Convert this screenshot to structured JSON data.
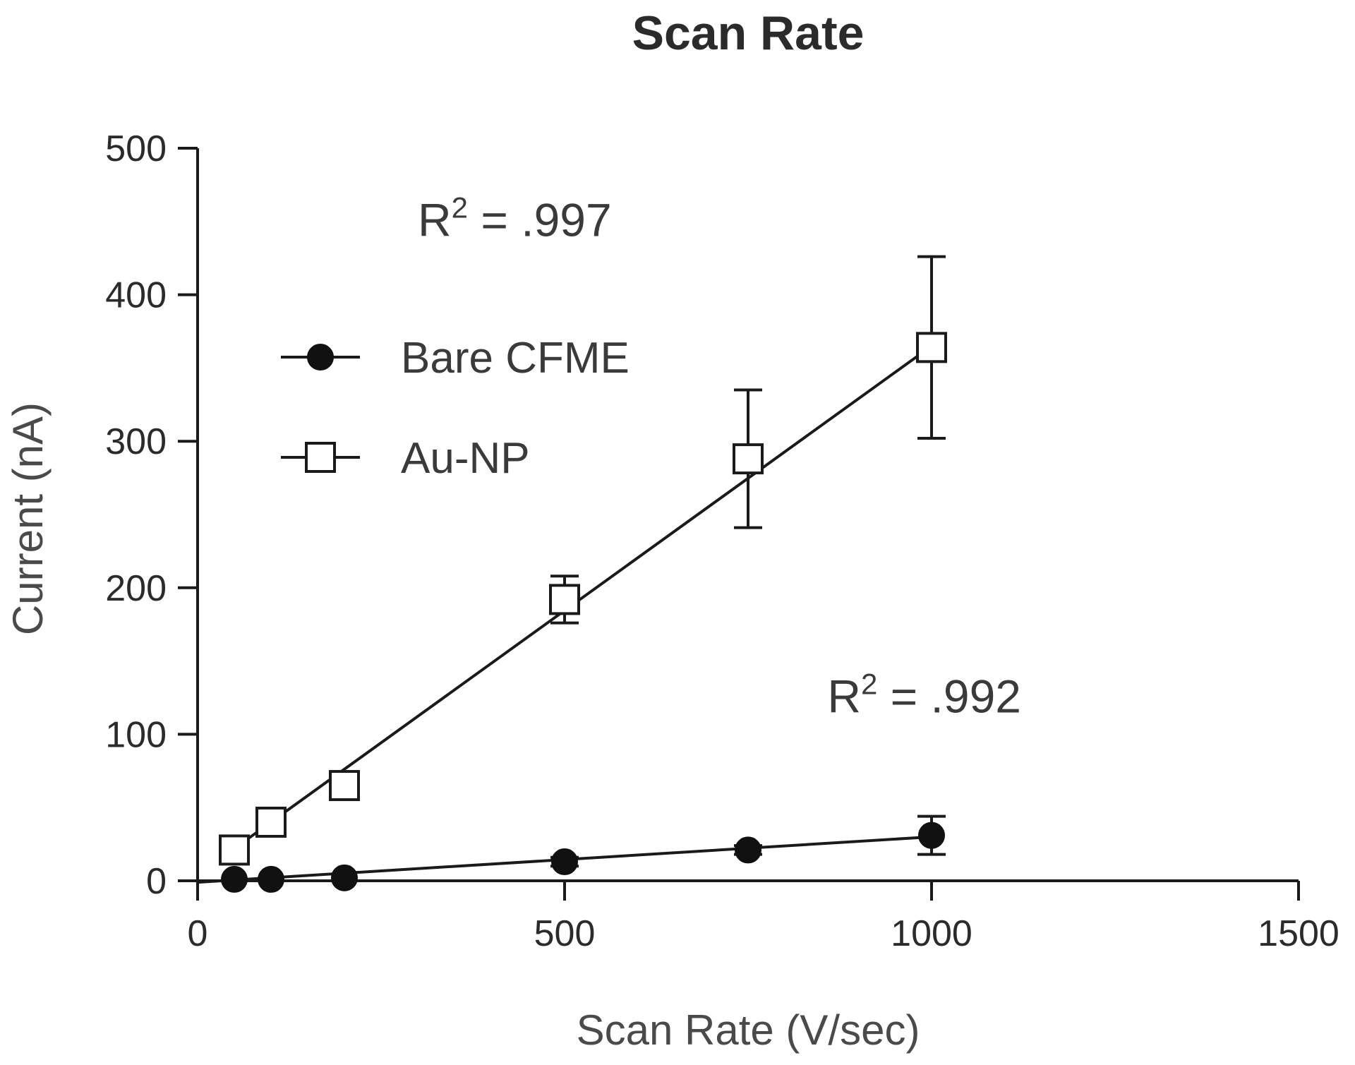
{
  "chart_data": {
    "type": "scatter",
    "title": "Scan Rate",
    "xlabel": "Scan Rate (V/sec)",
    "ylabel": "Current (nA)",
    "xlim": [
      0,
      1500
    ],
    "ylim": [
      0,
      500
    ],
    "xticks": [
      0,
      500,
      1000,
      1500
    ],
    "yticks": [
      0,
      100,
      200,
      300,
      400,
      500
    ],
    "grid": false,
    "legend_position": "upper-left",
    "series": [
      {
        "name": "Bare CFME",
        "marker": "filled-circle",
        "x": [
          50,
          100,
          200,
          500,
          750,
          1000
        ],
        "y": [
          1,
          1,
          2,
          13,
          21,
          31
        ],
        "error": [
          0,
          0,
          0,
          3,
          3,
          13
        ],
        "fit": {
          "x": [
            0,
            1000
          ],
          "y": [
            -1,
            30
          ]
        }
      },
      {
        "name": "Au-NP",
        "marker": "open-square",
        "x": [
          50,
          100,
          200,
          500,
          750,
          1000
        ],
        "y": [
          21,
          40,
          65,
          192,
          288,
          364
        ],
        "error": [
          3,
          3,
          3,
          16,
          47,
          62
        ],
        "fit": {
          "x": [
            50,
            1000
          ],
          "y": [
            22,
            365
          ]
        }
      }
    ],
    "annotations": [
      {
        "text_main": "R",
        "text_sup": "2",
        "text_rest": " = .997",
        "x": 300,
        "y": 440
      },
      {
        "text_main": "R",
        "text_sup": "2",
        "text_rest": " = .992",
        "x": 858,
        "y": 115
      }
    ]
  }
}
